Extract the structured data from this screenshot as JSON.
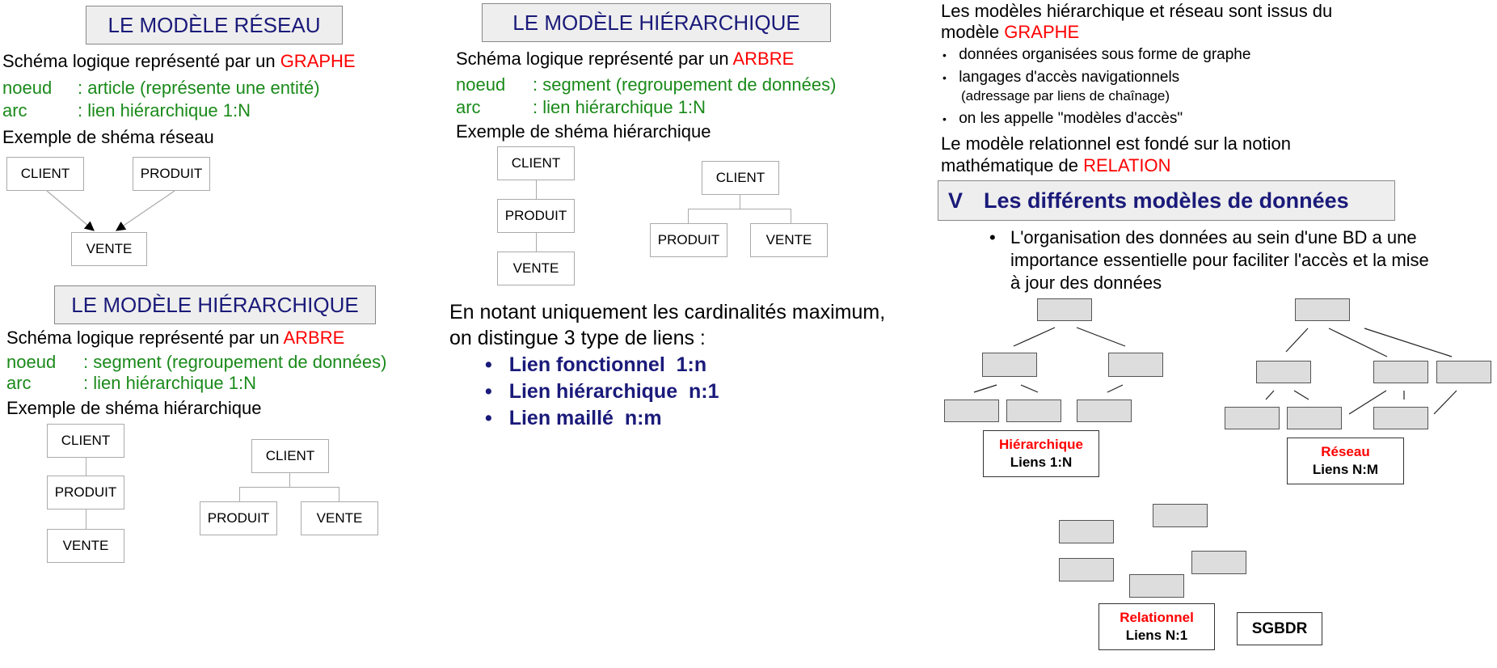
{
  "col1": {
    "title_reseau": "LE MODÈLE RÉSEAU",
    "schema_prefix": "Schéma logique représenté par un",
    "schema_graphe": "GRAPHE",
    "noeud_label": "noeud",
    "noeud_text": ": article (représente une entité)",
    "arc_label": "arc",
    "arc_text": ": lien hiérarchique 1:N",
    "example_reseau": "Exemple de shéma réseau",
    "client": "CLIENT",
    "produit": "PRODUIT",
    "vente": "VENTE",
    "title_hier": "LE MODÈLE HIÉRARCHIQUE",
    "schema_arbre": "ARBRE",
    "noeud2_text": ": segment (regroupement de données)",
    "arc2_text": ": lien hiérarchique 1:N",
    "example_hier": "Exemple de shéma hiérarchique"
  },
  "col2": {
    "title_hier": "LE MODÈLE HIÉRARCHIQUE",
    "schema_prefix": "Schéma logique représenté par un",
    "schema_arbre": "ARBRE",
    "noeud_label": "noeud",
    "noeud_text": ": segment (regroupement de données)",
    "arc_label": "arc",
    "arc_text": ": lien hiérarchique 1:N",
    "example_hier": "Exemple de shéma hiérarchique",
    "client": "CLIENT",
    "produit": "PRODUIT",
    "vente": "VENTE",
    "card_line1": "En notant uniquement les cardinalités maximum,",
    "card_line2": "on distingue 3 type de liens :",
    "liens": [
      "Lien fonctionnel  1:n",
      "Lien hiérarchique  n:1",
      "Lien maillé  n:m"
    ]
  },
  "col3": {
    "intro1": "Les modèles hiérarchique et réseau sont issus du",
    "intro2_prefix": "modèle",
    "intro2_graphe": "GRAPHE",
    "b1": "données organisées sous forme de graphe",
    "b2": "langages d'accès navigationnels",
    "b2_sub": "(adressage par liens de chaînage)",
    "b3": "on les appelle \"modèles d'accès\"",
    "rel1": "Le modèle relationnel est fondé sur la notion",
    "rel2_prefix": "mathématique de",
    "rel2_relation": "RELATION",
    "section_num": "V",
    "section_title": "Les différents modèles de données",
    "org1": "L'organisation des données au sein d'une BD a une",
    "org2": "importance essentielle pour faciliter l'accès et la mise",
    "org3": "à jour des données",
    "hier_label": "Hiérarchique",
    "hier_liens": "Liens 1:N",
    "reseau_label": "Réseau",
    "reseau_liens": "Liens N:M",
    "rel_label": "Relationnel",
    "rel_liens": "Liens N:1",
    "sgbdr": "SGBDR"
  }
}
